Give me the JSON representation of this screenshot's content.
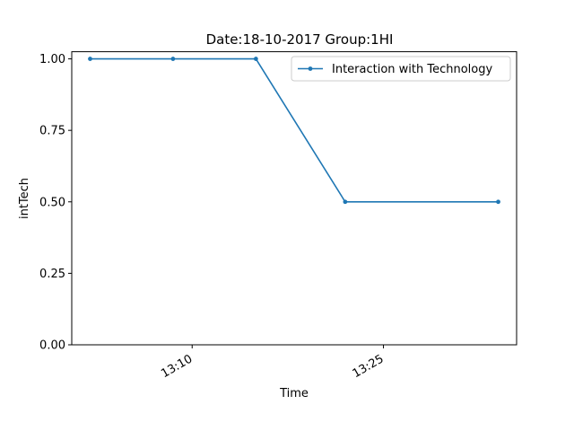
{
  "chart_data": {
    "type": "line",
    "title": "Date:18-10-2017  Group:1HI",
    "xlabel": "Time",
    "ylabel": "intTech",
    "x": [
      "13:02",
      "13:08.5",
      "13:15",
      "13:22",
      "13:34"
    ],
    "series": [
      {
        "name": "Interaction with Technology",
        "color": "#1f77b4",
        "values": [
          1.0,
          1.0,
          1.0,
          0.5,
          0.5
        ]
      }
    ],
    "x_ticks": [
      "13:10",
      "13:25"
    ],
    "y_ticks": [
      "0.00",
      "0.25",
      "0.50",
      "0.75",
      "1.00"
    ],
    "ylim": [
      0,
      1.0
    ],
    "grid": false,
    "legend_position": "top-right"
  }
}
